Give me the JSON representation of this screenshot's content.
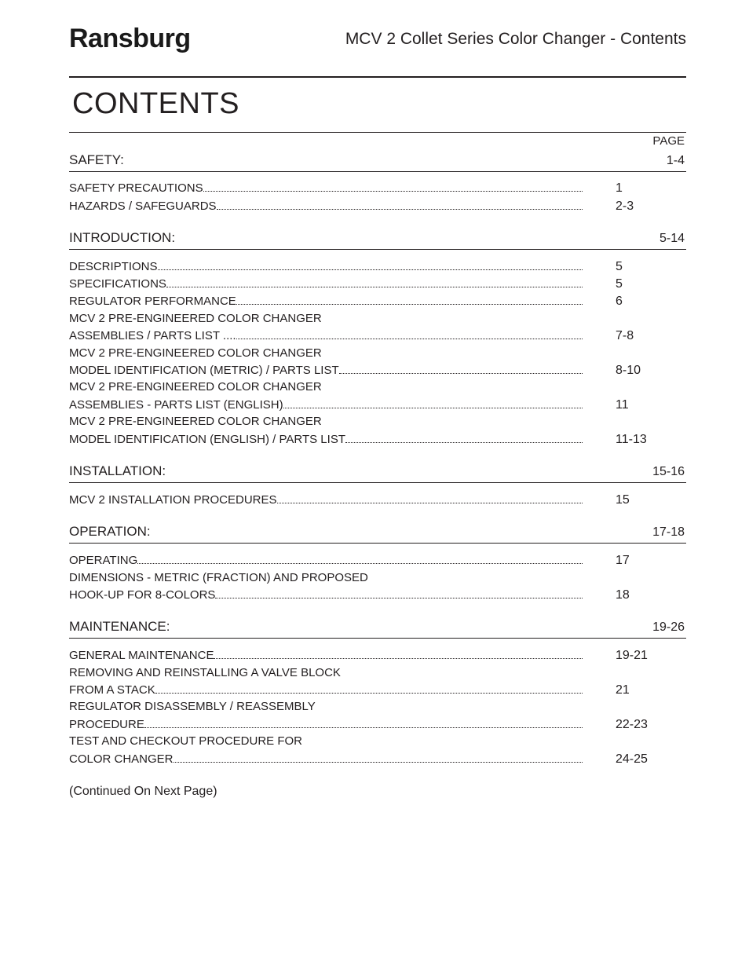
{
  "header": {
    "brand": "Ransburg",
    "doc_title": "MCV 2  Collet Series Color Changer - Contents"
  },
  "heading": "CONTENTS",
  "page_label": "PAGE",
  "continued": "(Continued On Next Page)",
  "colors": {
    "text": "#231f20",
    "background": "#ffffff",
    "rule": "#231f20"
  },
  "sections": [
    {
      "title": "SAFETY:",
      "pages": "1-4",
      "entries": [
        {
          "lines": [
            "SAFETY PRECAUTIONS"
          ],
          "page": "1"
        },
        {
          "lines": [
            "HAZARDS / SAFEGUARDS"
          ],
          "page": "2-3"
        }
      ]
    },
    {
      "title": "INTRODUCTION:",
      "pages": "5-14",
      "entries": [
        {
          "lines": [
            "DESCRIPTIONS"
          ],
          "page": "5"
        },
        {
          "lines": [
            "SPECIFICATIONS"
          ],
          "page": "5"
        },
        {
          "lines": [
            "REGULATOR PERFORMANCE"
          ],
          "page": "6"
        },
        {
          "lines": [
            "MCV 2 PRE-ENGINEERED COLOR CHANGER",
            "ASSEMBLIES / PARTS LIST ...."
          ],
          "page": "7-8"
        },
        {
          "lines": [
            "MCV 2 PRE-ENGINEERED COLOR CHANGER",
            "MODEL IDENTIFICATION (METRIC)  / PARTS LIST"
          ],
          "page": "8-10"
        },
        {
          "lines": [
            "MCV 2 PRE-ENGINEERED COLOR CHANGER",
            "ASSEMBLIES - PARTS LIST (ENGLISH)"
          ],
          "page": "11"
        },
        {
          "lines": [
            "MCV 2 PRE-ENGINEERED COLOR CHANGER",
            "MODEL IDENTIFICATION (ENGLISH)  / PARTS LIST"
          ],
          "page": "11-13"
        }
      ]
    },
    {
      "title": "INSTALLATION:",
      "pages": "15-16",
      "entries": [
        {
          "lines": [
            "MCV 2 INSTALLATION PROCEDURES"
          ],
          "page": "15"
        }
      ]
    },
    {
      "title": "OPERATION:",
      "pages": "17-18",
      "entries": [
        {
          "lines": [
            "OPERATING"
          ],
          "page": "17"
        },
        {
          "lines": [
            "DIMENSIONS - METRIC (FRACTION) AND PROPOSED",
            "HOOK-UP FOR 8-COLORS"
          ],
          "page": "18"
        }
      ]
    },
    {
      "title": "MAINTENANCE:",
      "pages": "19-26",
      "entries": [
        {
          "lines": [
            "GENERAL MAINTENANCE"
          ],
          "page": "19-21"
        },
        {
          "lines": [
            "REMOVING AND REINSTALLING A VALVE BLOCK",
            "FROM A STACK"
          ],
          "page": "21"
        },
        {
          "lines": [
            "REGULATOR DISASSEMBLY / REASSEMBLY",
            "PROCEDURE"
          ],
          "page": "22-23"
        },
        {
          "lines": [
            "TEST AND CHECKOUT PROCEDURE FOR",
            "COLOR CHANGER"
          ],
          "page": "24-25"
        }
      ]
    }
  ]
}
